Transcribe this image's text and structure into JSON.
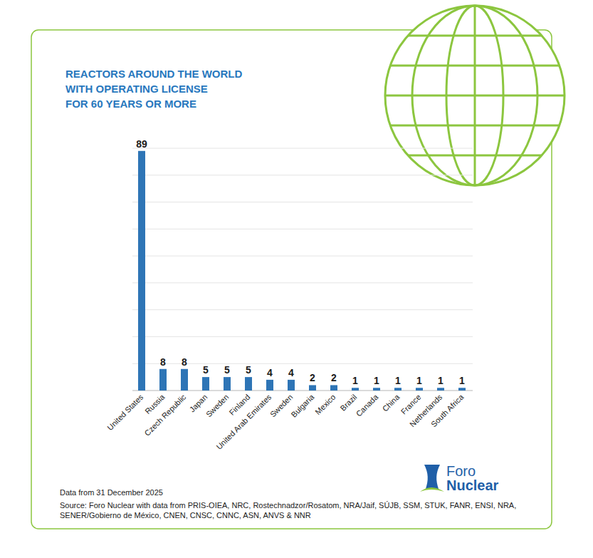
{
  "chart_data": {
    "type": "bar",
    "title": "REACTORS AROUND THE WORLD\nWITH OPERATING LICENSE\nFOR 60 YEARS OR MORE",
    "categories": [
      "United States",
      "Russia",
      "Czech Republic",
      "Japan",
      "Sweden",
      "Finland",
      "United Arab Emirates",
      "Sweden",
      "Bulgaria",
      "Mexico",
      "Brazil",
      "Canada",
      "China",
      "France",
      "Netherlands",
      "South Africa"
    ],
    "values": [
      89,
      8,
      8,
      5,
      5,
      5,
      4,
      4,
      2,
      2,
      1,
      1,
      1,
      1,
      1,
      1
    ],
    "color": "#2e75b6",
    "ylim": [
      0,
      90
    ],
    "yticks": [
      0,
      10,
      20,
      30,
      40,
      50,
      60,
      70,
      80,
      90
    ],
    "grid": true,
    "data_labels": true,
    "tick_labels": "x",
    "note": "Data from 31 December 2025",
    "source": "Source: Foro Nuclear with data from PRIS-OIEA, NRC, Rostechnadzor/Rosatom, NRA/Jaif, SÚJB, SSM, STUK, FANR, ENSI, NRA, SENER/Gobierno de México, CNEN, CNSC, CNNC, ASN, ANVS & NNR",
    "logo": "Foro\nNuclear"
  }
}
